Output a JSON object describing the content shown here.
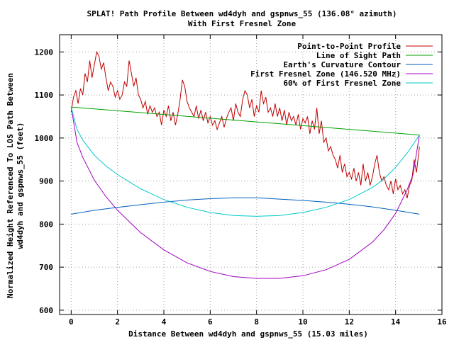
{
  "chart_data": {
    "type": "line",
    "title": "SPLAT! Path Profile Between wd4dyh and gspnws_55 (136.08° azimuth)",
    "subtitle": "With First Fresnel Zone",
    "xlabel": "Distance Between wd4dyh and gspnws_55 (15.03 miles)",
    "ylabel": [
      "Normalized Height Referenced To LOS Path Between",
      "wd4dyh and gspnws_55 (feet)"
    ],
    "xlim": [
      -0.5,
      16
    ],
    "ylim": [
      590,
      1240
    ],
    "x_ticks": [
      0,
      2,
      4,
      6,
      8,
      10,
      12,
      14,
      16
    ],
    "y_ticks": [
      600,
      700,
      800,
      900,
      1000,
      1100,
      1200
    ],
    "grid": true,
    "legend_position": "top-right",
    "series": [
      {
        "name": "Point-to-Point Profile",
        "color": "#c00000",
        "x": [
          0.0,
          0.1,
          0.2,
          0.3,
          0.4,
          0.5,
          0.6,
          0.7,
          0.8,
          0.9,
          1.0,
          1.1,
          1.2,
          1.3,
          1.4,
          1.5,
          1.6,
          1.7,
          1.8,
          1.9,
          2.0,
          2.1,
          2.2,
          2.3,
          2.4,
          2.5,
          2.6,
          2.7,
          2.8,
          2.9,
          3.0,
          3.1,
          3.2,
          3.3,
          3.4,
          3.5,
          3.6,
          3.7,
          3.8,
          3.9,
          4.0,
          4.1,
          4.2,
          4.3,
          4.4,
          4.5,
          4.6,
          4.7,
          4.8,
          4.9,
          5.0,
          5.1,
          5.2,
          5.3,
          5.4,
          5.5,
          5.6,
          5.7,
          5.8,
          5.9,
          6.0,
          6.1,
          6.2,
          6.3,
          6.4,
          6.5,
          6.6,
          6.7,
          6.8,
          6.9,
          7.0,
          7.1,
          7.2,
          7.3,
          7.4,
          7.5,
          7.6,
          7.7,
          7.8,
          7.9,
          8.0,
          8.1,
          8.2,
          8.3,
          8.4,
          8.5,
          8.6,
          8.7,
          8.8,
          8.9,
          9.0,
          9.1,
          9.2,
          9.3,
          9.4,
          9.5,
          9.6,
          9.7,
          9.8,
          9.9,
          10.0,
          10.1,
          10.2,
          10.3,
          10.4,
          10.5,
          10.6,
          10.7,
          10.8,
          10.9,
          11.0,
          11.1,
          11.2,
          11.3,
          11.4,
          11.5,
          11.6,
          11.7,
          11.8,
          11.9,
          12.0,
          12.1,
          12.2,
          12.3,
          12.4,
          12.5,
          12.6,
          12.7,
          12.8,
          12.9,
          13.0,
          13.1,
          13.2,
          13.3,
          13.4,
          13.5,
          13.6,
          13.7,
          13.8,
          13.9,
          14.0,
          14.1,
          14.2,
          14.3,
          14.4,
          14.5,
          14.6,
          14.7,
          14.8,
          14.9,
          15.03
        ],
        "y": [
          1060,
          1095,
          1110,
          1080,
          1115,
          1100,
          1150,
          1130,
          1180,
          1140,
          1170,
          1200,
          1190,
          1160,
          1175,
          1140,
          1110,
          1130,
          1120,
          1095,
          1110,
          1090,
          1100,
          1130,
          1120,
          1180,
          1150,
          1120,
          1140,
          1100,
          1090,
          1070,
          1085,
          1055,
          1075,
          1060,
          1070,
          1050,
          1060,
          1030,
          1065,
          1050,
          1075,
          1040,
          1060,
          1030,
          1055,
          1090,
          1135,
          1120,
          1085,
          1070,
          1060,
          1050,
          1075,
          1045,
          1065,
          1040,
          1060,
          1035,
          1050,
          1030,
          1040,
          1020,
          1035,
          1050,
          1025,
          1045,
          1060,
          1070,
          1040,
          1080,
          1060,
          1050,
          1090,
          1110,
          1100,
          1070,
          1090,
          1050,
          1075,
          1060,
          1110,
          1080,
          1095,
          1060,
          1070,
          1050,
          1080,
          1050,
          1070,
          1040,
          1065,
          1030,
          1060,
          1040,
          1050,
          1030,
          1055,
          1020,
          1045,
          1035,
          1050,
          1010,
          1040,
          1020,
          1070,
          1010,
          1040,
          990,
          1000,
          970,
          980,
          960,
          950,
          930,
          960,
          920,
          940,
          910,
          920,
          905,
          930,
          900,
          920,
          890,
          940,
          900,
          920,
          890,
          910,
          940,
          960,
          920,
          900,
          910,
          890,
          880,
          900,
          870,
          905,
          880,
          890,
          870,
          880,
          860,
          890,
          900,
          950,
          920,
          980
        ]
      },
      {
        "name": "Line of Sight Path",
        "color": "#00a000",
        "x": [
          0,
          15.03
        ],
        "y": [
          1072,
          1007
        ]
      },
      {
        "name": "Earth's Curvature Contour",
        "color": "#0060c0",
        "x": [
          0,
          1,
          2,
          3,
          4,
          5,
          6,
          7,
          8,
          9,
          10,
          11,
          12,
          13,
          14,
          15.03
        ],
        "y": [
          823,
          832,
          839,
          845,
          851,
          856,
          859,
          861,
          861,
          858,
          855,
          851,
          846,
          840,
          832,
          823
        ]
      },
      {
        "name": "First Fresnel Zone (146.520 MHz)",
        "color": "#a000c0",
        "x": [
          0,
          0.25,
          0.5,
          1,
          1.5,
          2,
          3,
          4,
          5,
          6,
          7,
          8,
          9,
          10,
          11,
          12,
          13,
          13.5,
          14,
          14.5,
          14.75,
          15.03
        ],
        "y": [
          1072,
          990,
          955,
          902,
          864,
          832,
          780,
          740,
          710,
          690,
          678,
          674,
          674,
          680,
          694,
          718,
          758,
          787,
          825,
          880,
          915,
          1007
        ]
      },
      {
        "name": "60% of First Fresnel Zone",
        "color": "#00c8c8",
        "x": [
          0,
          0.25,
          0.5,
          1,
          1.5,
          2,
          3,
          4,
          5,
          6,
          7,
          8,
          9,
          10,
          11,
          12,
          13,
          13.5,
          14,
          14.5,
          14.75,
          15.03
        ],
        "y": [
          1072,
          1020,
          995,
          960,
          935,
          915,
          882,
          857,
          839,
          827,
          820,
          818,
          820,
          827,
          839,
          857,
          885,
          905,
          932,
          965,
          985,
          1007
        ]
      }
    ]
  }
}
